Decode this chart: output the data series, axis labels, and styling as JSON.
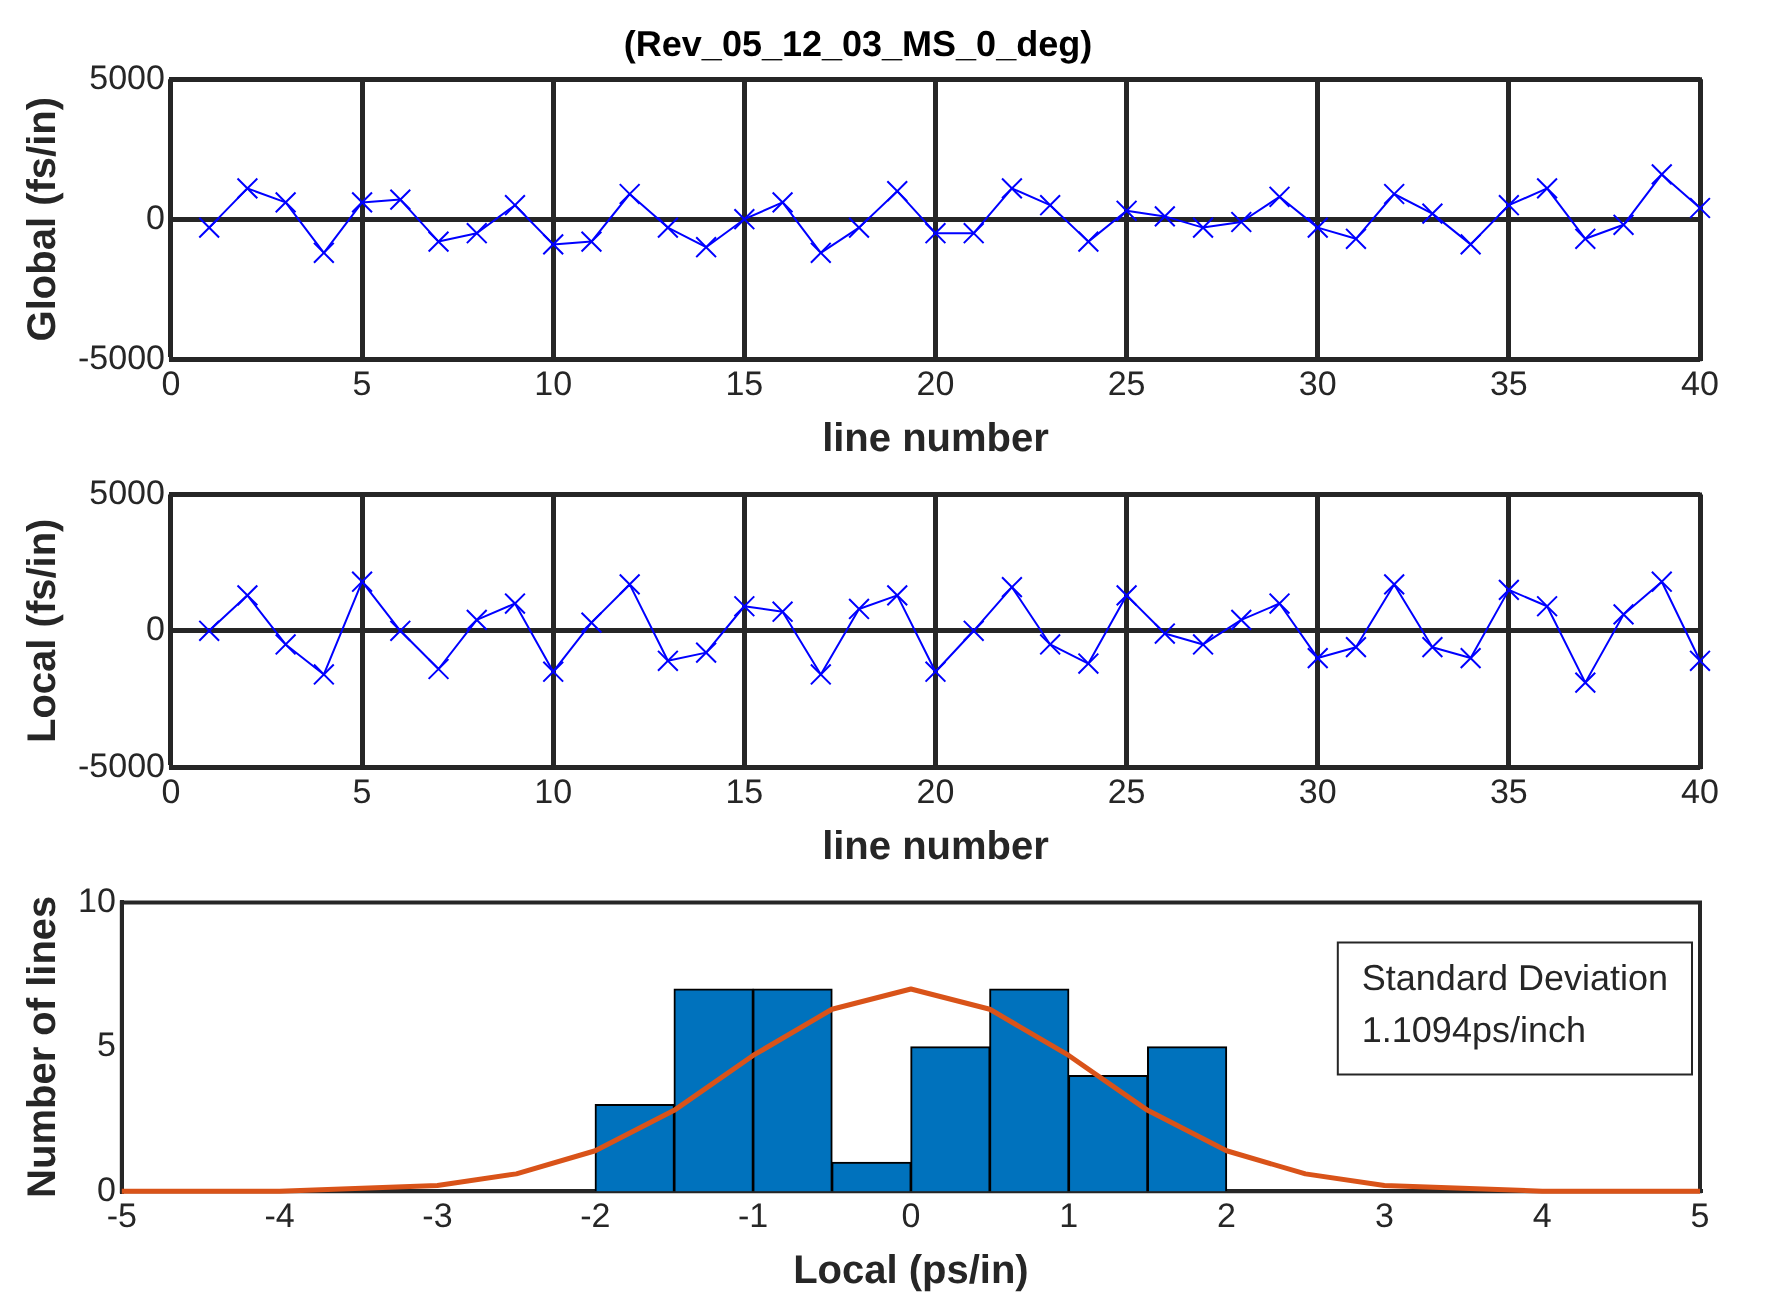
{
  "chart_data": [
    {
      "type": "line",
      "title": "(Rev_05_12_03_MS_0_deg)",
      "xlabel": "line number",
      "ylabel": "Global (fs/in)",
      "x": [
        1,
        2,
        3,
        4,
        5,
        6,
        7,
        8,
        9,
        10,
        11,
        12,
        13,
        14,
        15,
        16,
        17,
        18,
        19,
        20,
        21,
        22,
        23,
        24,
        25,
        26,
        27,
        28,
        29,
        30,
        31,
        32,
        33,
        34,
        35,
        36,
        37,
        38,
        39,
        40
      ],
      "series": [
        {
          "color": "#0000ff",
          "values": [
            -300,
            1100,
            600,
            -1200,
            600,
            700,
            -800,
            -500,
            500,
            -900,
            -800,
            900,
            -300,
            -1000,
            0,
            600,
            -1200,
            -300,
            1000,
            -500,
            -500,
            1100,
            500,
            -800,
            300,
            100,
            -300,
            -100,
            800,
            -300,
            -700,
            900,
            200,
            -900,
            500,
            1100,
            -700,
            -200,
            1600,
            400
          ]
        }
      ],
      "xlim": [
        0,
        40
      ],
      "xticks": [
        0,
        5,
        10,
        15,
        20,
        25,
        30,
        35,
        40
      ],
      "ylim": [
        -5000,
        5000
      ],
      "yticks": [
        -5000,
        0,
        5000
      ],
      "grid": true,
      "marker": "cross",
      "line_style": "solid"
    },
    {
      "type": "line",
      "xlabel": "line number",
      "ylabel": "Local (fs/in)",
      "x": [
        1,
        2,
        3,
        4,
        5,
        6,
        7,
        8,
        9,
        10,
        11,
        12,
        13,
        14,
        15,
        16,
        17,
        18,
        19,
        20,
        21,
        22,
        23,
        24,
        25,
        26,
        27,
        28,
        29,
        30,
        31,
        32,
        33,
        34,
        35,
        36,
        37,
        38,
        39,
        40
      ],
      "series": [
        {
          "color": "#0000ff",
          "values": [
            0,
            1300,
            -500,
            -1600,
            1800,
            0,
            -1400,
            400,
            1000,
            -1500,
            300,
            1700,
            -1100,
            -800,
            900,
            700,
            -1600,
            800,
            1300,
            -1500,
            0,
            1600,
            -500,
            -1200,
            1300,
            -100,
            -500,
            400,
            1000,
            -1000,
            -600,
            1700,
            -600,
            -1000,
            1500,
            900,
            -1900,
            600,
            1800,
            -1100
          ]
        }
      ],
      "xlim": [
        0,
        40
      ],
      "xticks": [
        0,
        5,
        10,
        15,
        20,
        25,
        30,
        35,
        40
      ],
      "ylim": [
        -5000,
        5000
      ],
      "yticks": [
        -5000,
        0,
        5000
      ],
      "grid": true,
      "marker": "cross",
      "line_style": "solid"
    },
    {
      "type": "histogram",
      "xlabel": "Local (ps/in)",
      "ylabel": "Number of lines",
      "bins": [
        -2,
        -1.5,
        -1,
        -0.5,
        0,
        0.5,
        1,
        1.5,
        2
      ],
      "values": [
        3,
        7,
        7,
        1,
        5,
        7,
        4,
        5
      ],
      "color": "#0072bd",
      "series": [
        {
          "type": "line",
          "color": "#d95319",
          "x": [
            -5,
            -4,
            -3,
            -2.5,
            -2,
            -1.5,
            -1,
            -0.5,
            0,
            0.5,
            1,
            1.5,
            2,
            2.5,
            3,
            4,
            5
          ],
          "values": [
            0,
            0,
            0.2,
            0.6,
            1.4,
            2.8,
            4.7,
            6.3,
            7,
            6.3,
            4.7,
            2.8,
            1.4,
            0.6,
            0.2,
            0,
            0
          ]
        }
      ],
      "xlim": [
        -5,
        5
      ],
      "xticks": [
        -5,
        -4,
        -3,
        -2,
        -1,
        0,
        1,
        2,
        3,
        4,
        5
      ],
      "ylim": [
        0,
        10
      ],
      "yticks": [
        0,
        5,
        10
      ],
      "annotations": [
        "Standard Deviation",
        "1.1094ps/inch"
      ]
    }
  ]
}
